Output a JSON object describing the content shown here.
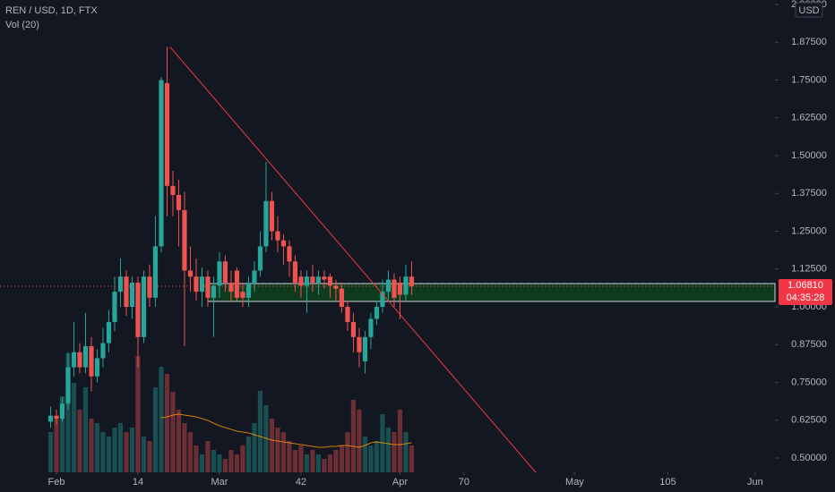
{
  "chart_data": {
    "type": "candlestick",
    "title": "REN / USD, 1D, FTX",
    "volume_title": "Vol (20)",
    "currency": "USD",
    "x": [
      -1,
      0,
      1,
      2,
      3,
      4,
      5,
      6,
      7,
      8,
      9,
      10,
      11,
      12,
      13,
      14,
      15,
      16,
      17,
      18,
      19,
      20,
      21,
      22,
      23,
      24,
      25,
      26,
      27,
      28,
      29,
      30,
      31,
      32,
      33,
      34,
      35,
      36,
      37,
      38,
      39,
      40,
      41,
      42,
      43,
      44,
      45,
      46,
      47,
      48,
      49,
      50,
      51,
      52,
      53,
      54,
      55,
      56,
      57,
      58,
      59,
      60,
      61
    ],
    "open": [
      0.62,
      0.64,
      0.63,
      0.68,
      0.8,
      0.85,
      0.8,
      0.87,
      0.77,
      0.83,
      0.88,
      0.95,
      1.05,
      1.1,
      1.0,
      1.08,
      0.9,
      1.1,
      1.03,
      1.2,
      1.74,
      1.4,
      1.37,
      1.32,
      1.12,
      1.1,
      1.05,
      1.1,
      1.03,
      1.07,
      1.15,
      1.08,
      1.12,
      1.05,
      1.03,
      1.08,
      1.12,
      1.2,
      1.35,
      1.25,
      1.22,
      1.2,
      1.15,
      1.1,
      1.07,
      1.1,
      1.08,
      1.1,
      1.1,
      1.07,
      1.06,
      1.0,
      0.95,
      0.9,
      0.82,
      0.9,
      0.96,
      1.0,
      1.05,
      1.09,
      1.08,
      1.04,
      1.1
    ],
    "high": [
      0.67,
      0.66,
      0.7,
      0.85,
      0.95,
      0.88,
      0.98,
      0.9,
      0.86,
      0.93,
      0.99,
      1.1,
      1.16,
      1.12,
      1.1,
      1.1,
      1.12,
      1.14,
      1.3,
      1.76,
      1.86,
      1.45,
      1.42,
      1.38,
      1.2,
      1.16,
      1.13,
      1.12,
      1.1,
      1.18,
      1.17,
      1.12,
      1.13,
      1.08,
      1.1,
      1.15,
      1.25,
      1.48,
      1.38,
      1.3,
      1.24,
      1.22,
      1.17,
      1.12,
      1.12,
      1.14,
      1.12,
      1.12,
      1.11,
      1.09,
      1.08,
      1.02,
      0.98,
      0.93,
      0.92,
      0.98,
      1.02,
      1.09,
      1.12,
      1.11,
      1.1,
      1.14,
      1.15
    ],
    "low": [
      0.6,
      0.61,
      0.62,
      0.66,
      0.77,
      0.78,
      0.78,
      0.72,
      0.75,
      0.8,
      0.85,
      0.92,
      1.0,
      0.97,
      0.96,
      0.8,
      0.88,
      1.0,
      1.0,
      1.18,
      1.3,
      1.3,
      1.2,
      0.87,
      1.05,
      1.02,
      1.0,
      1.0,
      0.9,
      1.03,
      1.05,
      1.02,
      1.02,
      1.0,
      1.0,
      1.05,
      1.1,
      1.18,
      1.22,
      1.18,
      1.14,
      1.1,
      1.05,
      1.03,
      0.98,
      1.05,
      1.04,
      1.06,
      1.03,
      1.02,
      0.98,
      0.92,
      0.85,
      0.8,
      0.78,
      0.86,
      0.94,
      0.98,
      1.02,
      1.0,
      0.96,
      1.02,
      1.04
    ],
    "close": [
      0.64,
      0.63,
      0.68,
      0.8,
      0.85,
      0.8,
      0.87,
      0.77,
      0.83,
      0.88,
      0.95,
      1.05,
      1.1,
      1.0,
      1.08,
      0.9,
      1.1,
      1.03,
      1.2,
      1.75,
      1.4,
      1.37,
      1.32,
      1.12,
      1.1,
      1.05,
      1.1,
      1.03,
      1.07,
      1.15,
      1.08,
      1.05,
      1.03,
      1.03,
      1.08,
      1.12,
      1.2,
      1.35,
      1.25,
      1.22,
      1.2,
      1.15,
      1.08,
      1.07,
      1.1,
      1.08,
      1.1,
      1.09,
      1.07,
      1.06,
      1.0,
      0.95,
      0.9,
      0.85,
      0.9,
      0.96,
      1.0,
      1.05,
      1.09,
      1.03,
      1.04,
      1.1,
      1.0681
    ],
    "volume": [
      45,
      60,
      85,
      133,
      100,
      70,
      95,
      60,
      55,
      45,
      40,
      50,
      55,
      45,
      50,
      130,
      40,
      35,
      95,
      118,
      110,
      90,
      70,
      55,
      45,
      30,
      20,
      35,
      25,
      20,
      15,
      25,
      20,
      30,
      40,
      55,
      91,
      75,
      60,
      50,
      45,
      35,
      25,
      30,
      20,
      25,
      20,
      15,
      20,
      25,
      30,
      45,
      81,
      70,
      40,
      30,
      35,
      65,
      50,
      45,
      70,
      45,
      30
    ],
    "volume_ma": [
      null,
      null,
      null,
      null,
      null,
      null,
      null,
      null,
      null,
      null,
      null,
      null,
      null,
      null,
      null,
      null,
      null,
      null,
      null,
      61,
      62,
      64,
      65,
      64,
      63,
      62,
      60,
      58,
      55,
      52,
      50,
      48,
      46,
      45,
      44,
      42,
      40,
      38,
      36,
      35,
      34,
      33,
      32,
      31,
      30,
      29,
      28,
      28,
      29,
      29,
      30,
      30,
      29,
      28,
      30,
      33,
      34,
      33,
      32,
      31,
      31,
      32,
      33
    ],
    "up_color": "#26a69a",
    "down_color": "#ef5350",
    "trendline": {
      "x": [
        19.5,
        82.3
      ],
      "y": [
        1.86,
        0.4527
      ],
      "color": "#f23645"
    },
    "zone": {
      "from": 26,
      "low": 1.018,
      "high": 1.077,
      "color": "#0f3a1e"
    },
    "last_price": {
      "value": 1.0681,
      "label": "1.06810"
    },
    "countdown": "04:35:28",
    "xlim": [
      -9.69,
      123.4
    ],
    "ylim": [
      0.4527,
      2.0148
    ],
    "xticks": [
      {
        "value": 0,
        "label": "Feb"
      },
      14,
      {
        "value": 28,
        "label": "Mar"
      },
      42,
      {
        "value": 59,
        "label": "Apr"
      },
      70,
      {
        "value": 89,
        "label": "May"
      },
      105,
      {
        "value": 120,
        "label": "Jun"
      }
    ],
    "xtick_labels_day": true,
    "yticks": [
      {
        "value": 0.5,
        "label": "0.50000"
      },
      {
        "value": 0.625,
        "label": "0.62500"
      },
      {
        "value": 0.75,
        "label": "0.75000"
      },
      {
        "value": 0.875,
        "label": "0.87500"
      },
      {
        "value": 1.0,
        "label": "1.00000"
      },
      {
        "value": 1.125,
        "label": "1.12500"
      },
      {
        "value": 1.25,
        "label": "1.25000"
      },
      {
        "value": 1.375,
        "label": "1.37500"
      },
      {
        "value": 1.5,
        "label": "1.50000"
      },
      {
        "value": 1.625,
        "label": "1.62500"
      },
      {
        "value": 1.75,
        "label": "1.75000"
      },
      {
        "value": 1.875,
        "label": "1.87500"
      },
      {
        "value": 2.0,
        "label": "2.00000"
      }
    ]
  }
}
